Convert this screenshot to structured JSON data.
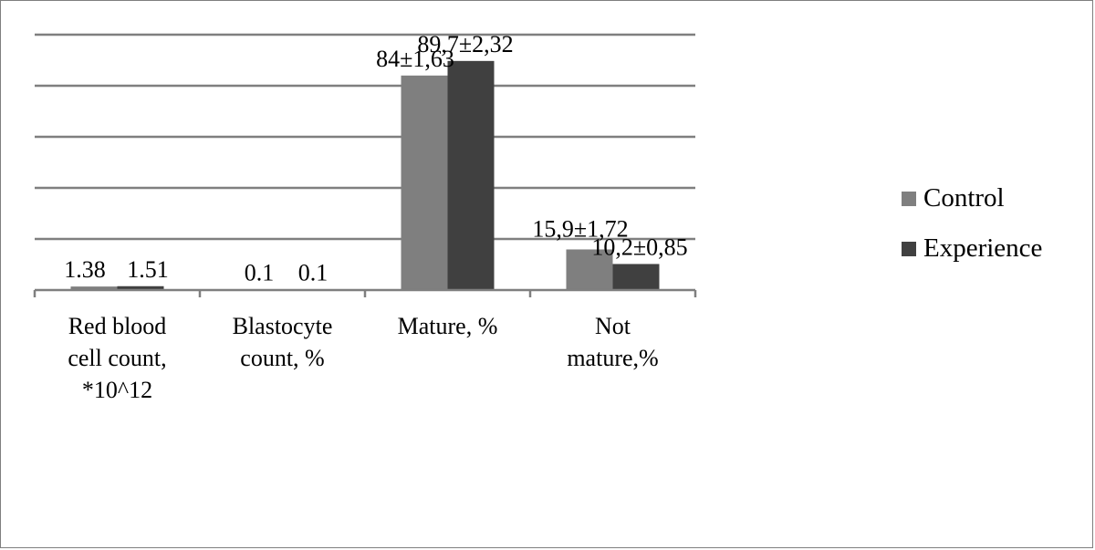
{
  "colors": {
    "control": "#7f7f7f",
    "experience": "#404040",
    "grid": "#7f7f7f"
  },
  "legend": {
    "items": [
      {
        "name": "Control",
        "color": "#7f7f7f"
      },
      {
        "name": "Experience",
        "color": "#404040"
      }
    ]
  },
  "chart_data": {
    "type": "bar",
    "categories": [
      [
        "Red blood",
        "cell count,",
        "*10^12"
      ],
      [
        "Blastocyte",
        "count, %"
      ],
      [
        "Mature, %"
      ],
      [
        "Not",
        "mature,%"
      ]
    ],
    "series": [
      {
        "name": "Control",
        "values": [
          1.38,
          0.1,
          84,
          15.9
        ],
        "labels": [
          "1.38",
          "0.1",
          "84±1,63",
          "15,9±1,72"
        ]
      },
      {
        "name": "Experience",
        "values": [
          1.51,
          0.1,
          89.7,
          10.2
        ],
        "labels": [
          "1.51",
          "0.1",
          "89,7±2,32",
          "10,2±0,85"
        ]
      }
    ],
    "ylim": [
      0,
      100
    ],
    "yticks": [
      0,
      20,
      40,
      60,
      80,
      100
    ],
    "grid": true,
    "legend_position": "right",
    "title": "",
    "xlabel": "",
    "ylabel": ""
  }
}
